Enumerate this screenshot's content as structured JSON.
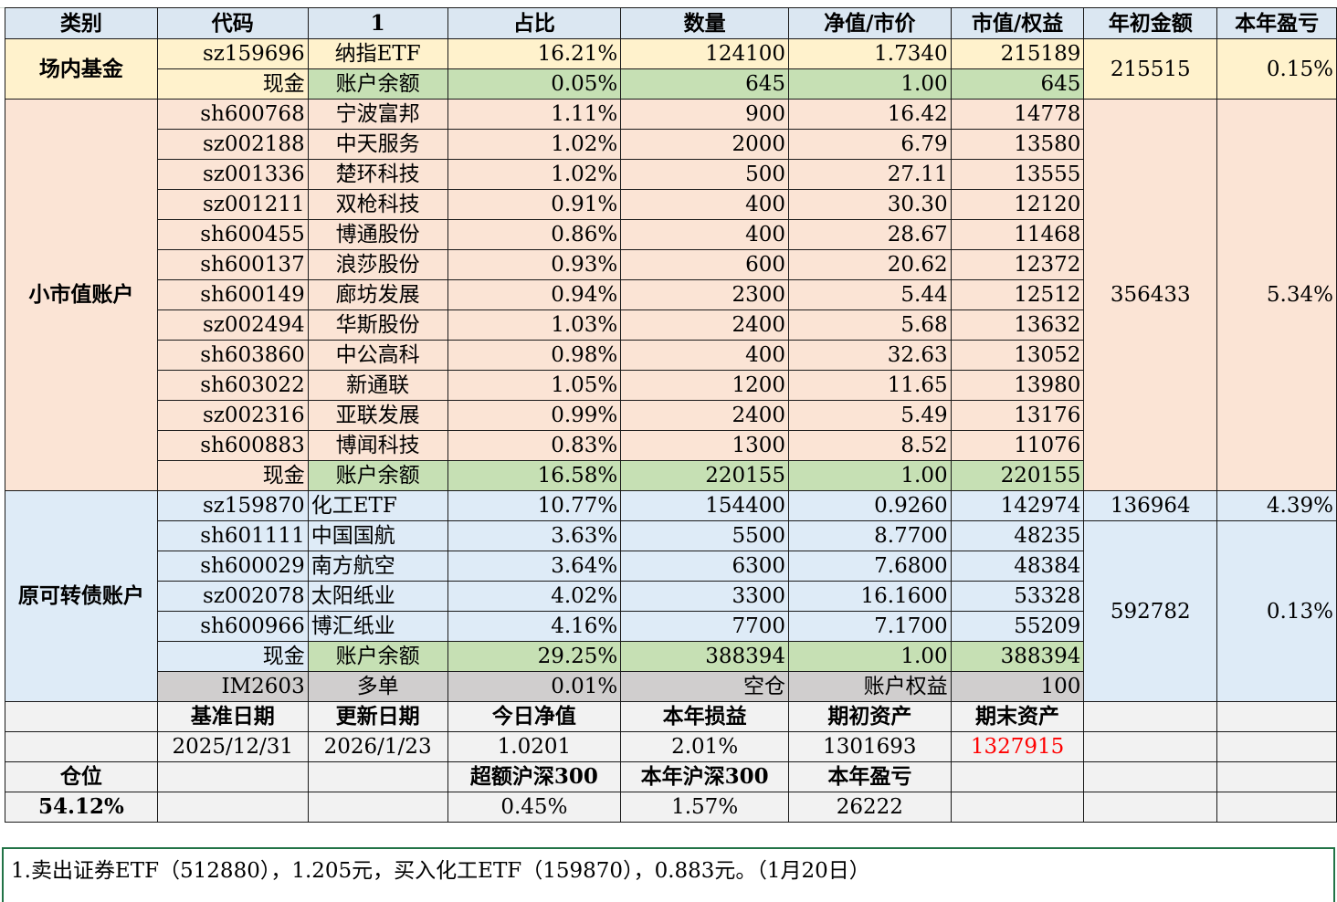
{
  "headers": [
    "类别",
    "代码",
    "1",
    "占比",
    "数量",
    "净值/市价",
    "市值/权益",
    "年初金额",
    "本年盈亏"
  ],
  "groups": {
    "onsite": {
      "label": "场内基金",
      "start": "215515",
      "pnl": "0.15%"
    },
    "small": {
      "label": "小市值账户",
      "start": "356433",
      "pnl": "5.34%"
    },
    "convert": {
      "label": "原可转债账户",
      "start1": "136964",
      "pnl1": "4.39%",
      "start2": "592782",
      "pnl2": "0.13%"
    }
  },
  "rows": [
    [
      "sz159696",
      "纳指ETF",
      "16.21%",
      "124100",
      "1.7340",
      "215189"
    ],
    [
      "现金",
      "账户余额",
      "0.05%",
      "645",
      "1.00",
      "645"
    ],
    [
      "sh600768",
      "宁波富邦",
      "1.11%",
      "900",
      "16.42",
      "14778"
    ],
    [
      "sz002188",
      "中天服务",
      "1.02%",
      "2000",
      "6.79",
      "13580"
    ],
    [
      "sz001336",
      "楚环科技",
      "1.02%",
      "500",
      "27.11",
      "13555"
    ],
    [
      "sz001211",
      "双枪科技",
      "0.91%",
      "400",
      "30.30",
      "12120"
    ],
    [
      "sh600455",
      "博通股份",
      "0.86%",
      "400",
      "28.67",
      "11468"
    ],
    [
      "sh600137",
      "浪莎股份",
      "0.93%",
      "600",
      "20.62",
      "12372"
    ],
    [
      "sh600149",
      "廊坊发展",
      "0.94%",
      "2300",
      "5.44",
      "12512"
    ],
    [
      "sz002494",
      "华斯股份",
      "1.03%",
      "2400",
      "5.68",
      "13632"
    ],
    [
      "sh603860",
      "中公高科",
      "0.98%",
      "400",
      "32.63",
      "13052"
    ],
    [
      "sh603022",
      "新通联",
      "1.05%",
      "1200",
      "11.65",
      "13980"
    ],
    [
      "sz002316",
      "亚联发展",
      "0.99%",
      "2400",
      "5.49",
      "13176"
    ],
    [
      "sh600883",
      "博闻科技",
      "0.83%",
      "1300",
      "8.52",
      "11076"
    ],
    [
      "现金",
      "账户余额",
      "16.58%",
      "220155",
      "1.00",
      "220155"
    ],
    [
      "sz159870",
      "化工ETF",
      "10.77%",
      "154400",
      "0.9260",
      "142974"
    ],
    [
      "sh601111",
      "中国国航",
      "3.63%",
      "5500",
      "8.7700",
      "48235"
    ],
    [
      "sh600029",
      "南方航空",
      "3.64%",
      "6300",
      "7.6800",
      "48384"
    ],
    [
      "sz002078",
      "太阳纸业",
      "4.02%",
      "3300",
      "16.1600",
      "53328"
    ],
    [
      "sh600966",
      "博汇纸业",
      "4.16%",
      "7700",
      "7.1700",
      "55209"
    ],
    [
      "现金",
      "账户余额",
      "29.25%",
      "388394",
      "1.00",
      "388394"
    ],
    [
      "IM2603",
      "多单",
      "0.01%",
      "空仓",
      "账户权益",
      "100"
    ]
  ],
  "summary": {
    "labels": [
      "基准日期",
      "更新日期",
      "今日净值",
      "本年损益",
      "期初资产",
      "期末资产"
    ],
    "values": [
      "2025/12/31",
      "2026/1/23",
      "1.0201",
      "2.01%",
      "1301693",
      "1327915"
    ],
    "position_label": "仓位",
    "position_value": "54.12%",
    "labels2": [
      "超额沪深300",
      "本年沪深300",
      "本年盈亏"
    ],
    "values2": [
      "0.45%",
      "1.57%",
      "26222"
    ]
  },
  "note": "1.卖出证券ETF（512880），1.205元，买入化工ETF（159870），0.883元。（1月20日）",
  "colors": {
    "yellow": "#fff2cc",
    "peach": "#fbe4d5",
    "blue": "#deebf7",
    "green": "#c6e0b4",
    "gray": "#d0cece",
    "red": "#ff0000"
  }
}
